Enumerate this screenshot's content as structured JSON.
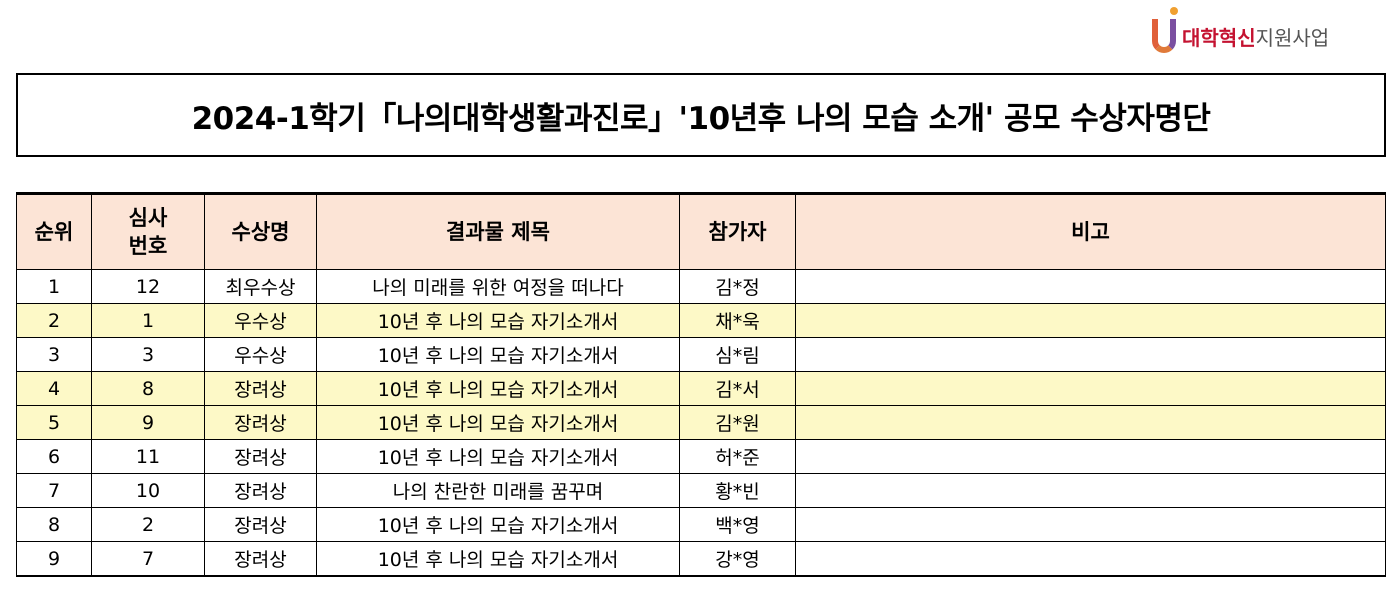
{
  "logo": {
    "text_red": "대학혁신",
    "text_gray": "지원사업"
  },
  "title": "2024-1학기「나의대학생활과진로」'10년후 나의 모습 소개' 공모 수상자명단",
  "table": {
    "headers": [
      "순위",
      "심사\n번호",
      "수상명",
      "결과물 제목",
      "참가자",
      "비고"
    ],
    "rows": [
      {
        "rank": "1",
        "no": "12",
        "award": "최우수상",
        "title": "나의 미래를 위한 여정을 떠나다",
        "name": "김*정",
        "note": "",
        "highlight": false
      },
      {
        "rank": "2",
        "no": "1",
        "award": "우수상",
        "title": "10년 후 나의 모습 자기소개서",
        "name": "채*욱",
        "note": "",
        "highlight": true
      },
      {
        "rank": "3",
        "no": "3",
        "award": "우수상",
        "title": "10년 후 나의 모습 자기소개서",
        "name": "심*림",
        "note": "",
        "highlight": false
      },
      {
        "rank": "4",
        "no": "8",
        "award": "장려상",
        "title": "10년 후 나의 모습 자기소개서",
        "name": "김*서",
        "note": "",
        "highlight": true
      },
      {
        "rank": "5",
        "no": "9",
        "award": "장려상",
        "title": "10년 후 나의 모습 자기소개서",
        "name": "김*원",
        "note": "",
        "highlight": true
      },
      {
        "rank": "6",
        "no": "11",
        "award": "장려상",
        "title": "10년 후 나의 모습 자기소개서",
        "name": "허*준",
        "note": "",
        "highlight": false
      },
      {
        "rank": "7",
        "no": "10",
        "award": "장려상",
        "title": "나의 찬란한 미래를 꿈꾸며",
        "name": "황*빈",
        "note": "",
        "highlight": false
      },
      {
        "rank": "8",
        "no": "2",
        "award": "장려상",
        "title": "10년 후 나의 모습 자기소개서",
        "name": "백*영",
        "note": "",
        "highlight": false
      },
      {
        "rank": "9",
        "no": "7",
        "award": "장려상",
        "title": "10년 후 나의 모습 자기소개서",
        "name": "강*영",
        "note": "",
        "highlight": false
      }
    ]
  },
  "colors": {
    "header_bg": "#fce4d6",
    "highlight_bg": "#fdf9c7",
    "logo_red": "#c41230"
  }
}
